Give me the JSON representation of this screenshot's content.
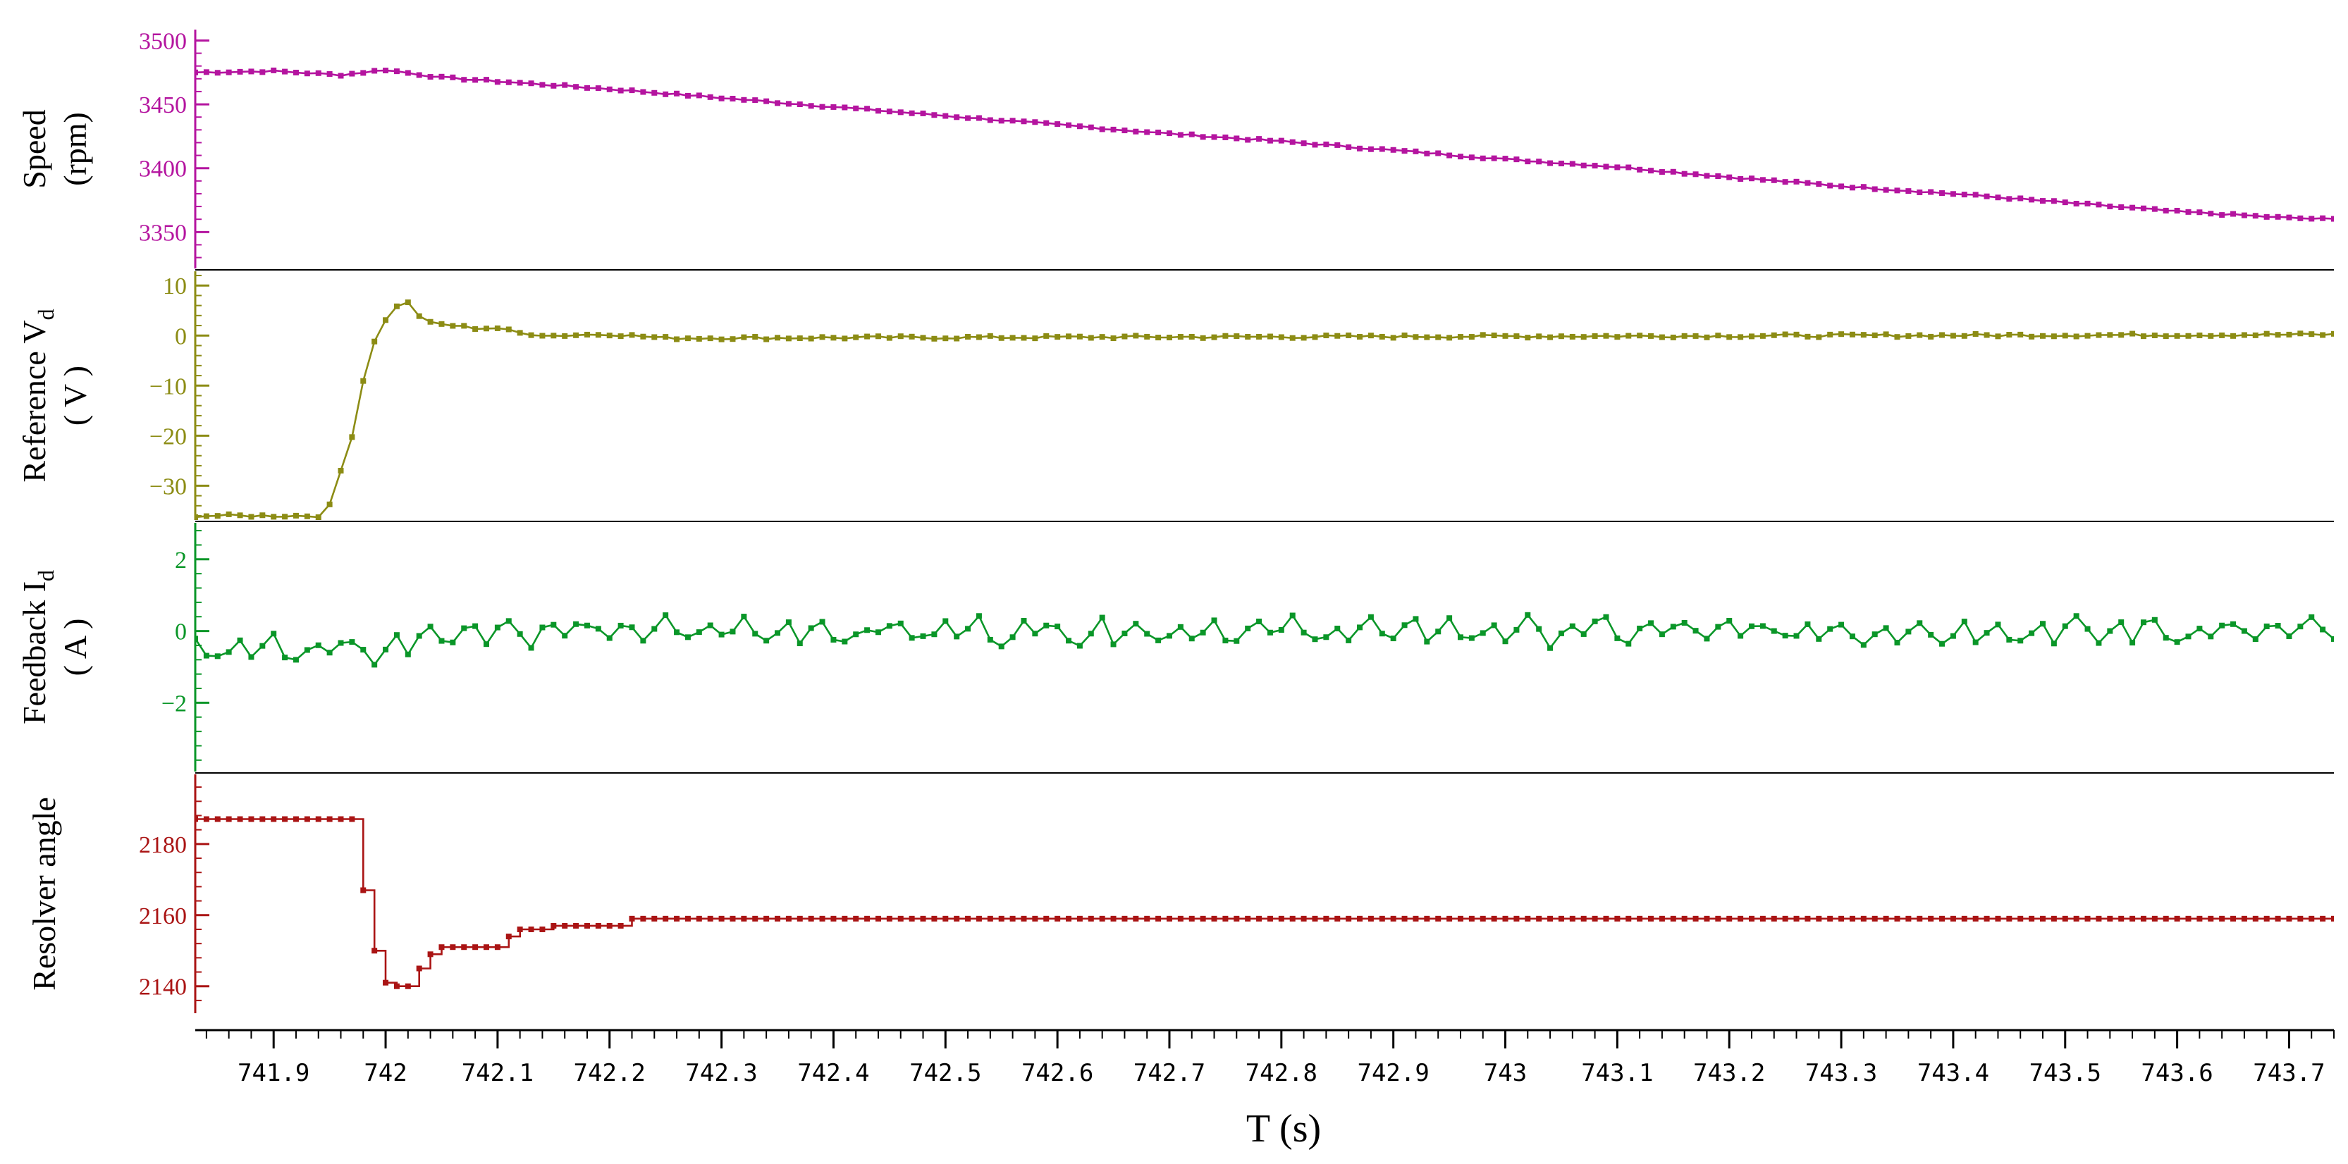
{
  "chart_data": {
    "type": "line",
    "xlabel": "T (s)",
    "xlim": [
      741.83,
      743.74
    ],
    "xticks": [
      "741.9",
      "742",
      "742.1",
      "742.2",
      "742.3",
      "742.4",
      "742.5",
      "742.6",
      "742.7",
      "742.8",
      "742.9",
      "743",
      "743.1",
      "743.2",
      "743.3",
      "743.4",
      "743.5",
      "743.6",
      "743.7"
    ],
    "xtick_values": [
      741.9,
      742.0,
      742.1,
      742.2,
      742.3,
      742.4,
      742.5,
      742.6,
      742.7,
      742.8,
      742.9,
      743.0,
      743.1,
      743.2,
      743.3,
      743.4,
      743.5,
      743.6,
      743.7
    ],
    "sample_period": 0.01,
    "panels": [
      {
        "id": "speed",
        "ylabel_lines": [
          "Speed",
          "(rpm)"
        ],
        "color": "#b4149f",
        "ylim": [
          3327,
          3503
        ],
        "yticks": [
          3350,
          3400,
          3450,
          3500
        ],
        "ytick_labels": [
          "3350",
          "3400",
          "3450",
          "3500"
        ],
        "step": false,
        "points": [
          [
            741.83,
            3475
          ],
          [
            741.9,
            3476
          ],
          [
            741.96,
            3473
          ],
          [
            742.0,
            3477
          ],
          [
            742.05,
            3471
          ],
          [
            742.1,
            3468
          ],
          [
            742.2,
            3462
          ],
          [
            742.3,
            3455
          ],
          [
            742.4,
            3448
          ],
          [
            742.5,
            3441
          ],
          [
            742.6,
            3434
          ],
          [
            742.7,
            3427
          ],
          [
            742.8,
            3421
          ],
          [
            742.9,
            3414
          ],
          [
            743.0,
            3407
          ],
          [
            743.1,
            3401
          ],
          [
            743.2,
            3393
          ],
          [
            743.3,
            3386
          ],
          [
            743.4,
            3380
          ],
          [
            743.5,
            3373
          ],
          [
            743.6,
            3366
          ],
          [
            743.7,
            3361
          ],
          [
            743.74,
            3360
          ]
        ],
        "noise": 1.5
      },
      {
        "id": "vd",
        "ylabel_lines": [
          "Reference V",
          "( V )"
        ],
        "ylabel_sub": "d",
        "color": "#8c8c14",
        "ylim": [
          -36,
          12
        ],
        "yticks": [
          -30,
          -20,
          -10,
          0,
          10
        ],
        "ytick_labels": [
          "−30",
          "−20",
          "−10",
          "0",
          "10"
        ],
        "step": false,
        "points": [
          [
            741.947,
            -36
          ],
          [
            741.953,
            -32
          ],
          [
            741.96,
            -27
          ],
          [
            741.97,
            -20
          ],
          [
            741.98,
            -9
          ],
          [
            741.99,
            -1
          ],
          [
            742.0,
            3
          ],
          [
            742.01,
            6
          ],
          [
            742.02,
            6.5
          ],
          [
            742.03,
            4
          ],
          [
            742.04,
            2.5
          ],
          [
            742.06,
            2
          ],
          [
            742.08,
            1.5
          ],
          [
            742.1,
            1.5
          ],
          [
            742.12,
            0.5
          ],
          [
            742.15,
            0
          ],
          [
            742.2,
            0.3
          ],
          [
            742.25,
            -0.5
          ],
          [
            743.74,
            0.2
          ]
        ],
        "noise": 0.6
      },
      {
        "id": "id",
        "ylabel_lines": [
          "Feedback I",
          "( A )"
        ],
        "ylabel_sub": "d",
        "color": "#0a9628",
        "ylim": [
          -3.8,
          2.9
        ],
        "yticks": [
          -2,
          0,
          2
        ],
        "ytick_labels": [
          "−2",
          "0",
          "2"
        ],
        "step": false,
        "points": [
          [
            741.83,
            -0.5
          ],
          [
            742.0,
            -0.5
          ],
          [
            742.05,
            0.0
          ],
          [
            743.74,
            0.0
          ]
        ],
        "noise": 0.35,
        "oscillate": true
      },
      {
        "id": "angle",
        "ylabel_lines": [
          "Resolver angle"
        ],
        "color": "#aa1414",
        "ylim": [
          2134,
          2198
        ],
        "yticks": [
          2140,
          2160,
          2180
        ],
        "ytick_labels": [
          "2140",
          "2160",
          "2180"
        ],
        "step": true,
        "steps": [
          [
            741.83,
            2187
          ],
          [
            741.98,
            2167
          ],
          [
            741.99,
            2150
          ],
          [
            742.0,
            2141
          ],
          [
            742.01,
            2140
          ],
          [
            742.03,
            2145
          ],
          [
            742.04,
            2149
          ],
          [
            742.05,
            2151
          ],
          [
            742.11,
            2154
          ],
          [
            742.12,
            2156
          ],
          [
            742.15,
            2157
          ],
          [
            742.22,
            2159
          ],
          [
            743.74,
            2159
          ]
        ]
      }
    ]
  }
}
